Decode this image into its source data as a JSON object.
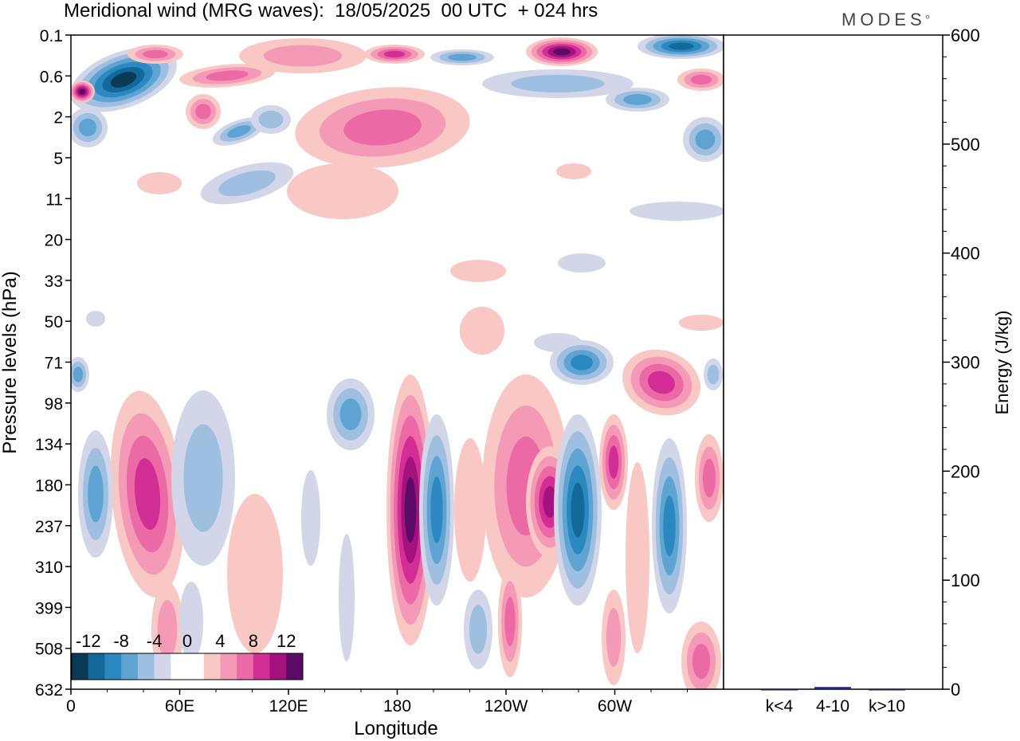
{
  "header": {
    "title": "Meridional wind (MRG waves):  18/05/2025  00 UTC  + 024 hrs",
    "brand": "MODES"
  },
  "chart_data": [
    {
      "type": "heatmap",
      "title": "Meridional wind (MRG waves):  18/05/2025  00 UTC  + 024 hrs",
      "xlabel": "Longitude",
      "ylabel": "Pressure levels (hPa)",
      "x_ticks": [
        "0",
        "60E",
        "120E",
        "180",
        "120W",
        "60W"
      ],
      "y_ticks": [
        "0.1",
        "0.6",
        "2",
        "5",
        "11",
        "20",
        "33",
        "50",
        "71",
        "98",
        "134",
        "180",
        "237",
        "310",
        "399",
        "508",
        "632"
      ],
      "colorbar": {
        "tick_labels": [
          "-12",
          "-8",
          "-4",
          "0",
          "4",
          "8",
          "12"
        ],
        "colors": [
          "#0b3a57",
          "#136a9a",
          "#2c88c0",
          "#5fa3d3",
          "#9ebfe0",
          "#d2d6e8",
          "#ffffff",
          "#ffffff",
          "#f9c8c4",
          "#f49ab6",
          "#eb6aa6",
          "#d32e95",
          "#a3127d",
          "#5b0a66"
        ]
      }
    },
    {
      "type": "bar",
      "ylabel": "Energy (J/kg)",
      "categories": [
        "k<4",
        "4-10",
        "k>10"
      ],
      "values": [
        0,
        2,
        0
      ],
      "ylim": [
        0,
        600
      ],
      "y_ticks": [
        "0",
        "100",
        "200",
        "300",
        "400",
        "500",
        "600"
      ],
      "bar_color": "#1a237e"
    }
  ]
}
